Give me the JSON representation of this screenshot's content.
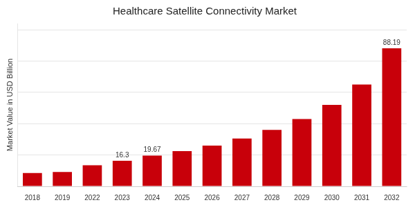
{
  "chart_data": {
    "type": "bar",
    "title": "Healthcare Satellite Connectivity Market",
    "ylabel": "Market Value in USD Billion",
    "categories": [
      "2018",
      "2019",
      "2022",
      "2023",
      "2024",
      "2025",
      "2026",
      "2027",
      "2028",
      "2029",
      "2030",
      "2031",
      "2032"
    ],
    "values": [
      8.5,
      9.2,
      13.5,
      16.3,
      19.67,
      22.5,
      26.0,
      30.5,
      36.0,
      43.0,
      52.0,
      65.0,
      88.19
    ],
    "value_labels": [
      null,
      null,
      null,
      "16.3",
      "19.67",
      null,
      null,
      null,
      null,
      null,
      null,
      null,
      "88.19"
    ],
    "data_labels": true,
    "color": "#C8000A",
    "ylim": [
      0,
      104.0642
    ],
    "yticks": [
      0,
      20,
      40,
      60,
      80,
      100
    ],
    "grid": true,
    "tick_labels": "x"
  }
}
